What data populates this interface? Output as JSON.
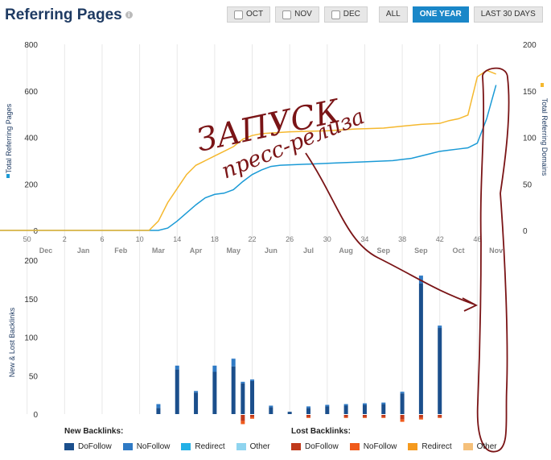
{
  "header": {
    "title": "Referring Pages",
    "buttons": [
      {
        "label": "OCT",
        "checkbox": true,
        "active": false
      },
      {
        "label": "NOV",
        "checkbox": true,
        "active": false
      },
      {
        "label": "DEC",
        "checkbox": true,
        "active": false
      },
      {
        "label": "ALL",
        "checkbox": false,
        "active": false
      },
      {
        "label": "ONE YEAR",
        "checkbox": false,
        "active": true
      },
      {
        "label": "LAST 30 DAYS",
        "checkbox": false,
        "active": false
      }
    ]
  },
  "annotation": {
    "line1": "ЗАПУСК",
    "line2": "пресс-релиза"
  },
  "chart_data": [
    {
      "type": "line",
      "left_axis_label": "Total Referring Pages",
      "right_axis_label": "Total Referring Domains",
      "left_ylim": [
        0,
        800
      ],
      "right_ylim": [
        0,
        200
      ],
      "left_ticks": [
        "0",
        "200",
        "400",
        "600",
        "800"
      ],
      "right_ticks": [
        "0",
        "50",
        "100",
        "150",
        "200"
      ],
      "week_ticks": [
        "50",
        "2",
        "6",
        "10",
        "14",
        "18",
        "22",
        "26",
        "30",
        "34",
        "38",
        "42",
        "46"
      ],
      "month_labels": [
        "Dec",
        "Jan",
        "Feb",
        "Mar",
        "Apr",
        "May",
        "Jun",
        "Jul",
        "Aug",
        "Sep",
        "Sep",
        "Oct",
        "Nov"
      ],
      "colors": {
        "pages": "#1a9ad6",
        "domains": "#f5b82e"
      },
      "series": [
        {
          "name": "Total Referring Pages",
          "axis": "left",
          "points": [
            [
              0,
              0
            ],
            [
              94,
              0
            ],
            [
              95,
              10
            ],
            [
              96,
              40
            ],
            [
              97,
              75
            ],
            [
              98,
              110
            ],
            [
              99,
              140
            ],
            [
              100,
              155
            ],
            [
              101,
              160
            ],
            [
              102,
              175
            ],
            [
              103,
              210
            ],
            [
              104,
              240
            ],
            [
              105,
              260
            ],
            [
              106,
              275
            ],
            [
              107,
              280
            ],
            [
              110,
              285
            ],
            [
              113,
              290
            ],
            [
              116,
              295
            ],
            [
              119,
              300
            ],
            [
              120,
              305
            ],
            [
              121,
              310
            ],
            [
              122,
              320
            ],
            [
              123,
              330
            ],
            [
              124,
              340
            ],
            [
              125,
              345
            ],
            [
              126,
              350
            ],
            [
              127,
              355
            ],
            [
              128,
              375
            ],
            [
              129,
              480
            ],
            [
              130,
              625
            ]
          ]
        },
        {
          "name": "Total Referring Domains",
          "axis": "right",
          "points": [
            [
              0,
              0
            ],
            [
              93,
              0
            ],
            [
              94,
              10
            ],
            [
              95,
              30
            ],
            [
              96,
              45
            ],
            [
              97,
              60
            ],
            [
              98,
              70
            ],
            [
              99,
              75
            ],
            [
              100,
              80
            ],
            [
              101,
              85
            ],
            [
              102,
              90
            ],
            [
              103,
              98
            ],
            [
              104,
              102
            ],
            [
              105,
              104
            ],
            [
              108,
              106
            ],
            [
              112,
              107
            ],
            [
              115,
              109
            ],
            [
              118,
              110
            ],
            [
              120,
              112
            ],
            [
              122,
              114
            ],
            [
              124,
              115
            ],
            [
              125,
              118
            ],
            [
              126,
              120
            ],
            [
              127,
              124
            ],
            [
              128,
              165
            ],
            [
              129,
              172
            ],
            [
              130,
              168
            ]
          ]
        }
      ]
    },
    {
      "type": "bar",
      "ylabel": "New & Lost Backlinks",
      "ylim": [
        -15,
        200
      ],
      "yticks": [
        "0",
        "50",
        "100",
        "150",
        "200"
      ],
      "new_legend_title": "New Backlinks:",
      "lost_legend_title": "Lost Backlinks:",
      "new_legend": [
        {
          "name": "DoFollow",
          "color": "#1b4f8c"
        },
        {
          "name": "NoFollow",
          "color": "#2f7ac5"
        },
        {
          "name": "Redirect",
          "color": "#23b0e6"
        },
        {
          "name": "Other",
          "color": "#8fd4ef"
        }
      ],
      "lost_legend": [
        {
          "name": "DoFollow",
          "color": "#c0391b"
        },
        {
          "name": "NoFollow",
          "color": "#f05a1a"
        },
        {
          "name": "Redirect",
          "color": "#f59a1e"
        },
        {
          "name": "Other",
          "color": "#f5c07a"
        }
      ],
      "bars": [
        {
          "week": 94,
          "dofollow": 8,
          "nofollow": 5,
          "lost_dofollow": 0,
          "lost_nofollow": 0
        },
        {
          "week": 96,
          "dofollow": 58,
          "nofollow": 5,
          "lost_dofollow": 0,
          "lost_nofollow": 0
        },
        {
          "week": 98,
          "dofollow": 28,
          "nofollow": 2,
          "lost_dofollow": 0,
          "lost_nofollow": 0
        },
        {
          "week": 100,
          "dofollow": 55,
          "nofollow": 8,
          "lost_dofollow": 0,
          "lost_nofollow": 0
        },
        {
          "week": 102,
          "dofollow": 62,
          "nofollow": 10,
          "lost_dofollow": 0,
          "lost_nofollow": 0
        },
        {
          "week": 103,
          "dofollow": 40,
          "nofollow": 2,
          "lost_dofollow": 8,
          "lost_nofollow": 4
        },
        {
          "week": 104,
          "dofollow": 43,
          "nofollow": 2,
          "lost_dofollow": 3,
          "lost_nofollow": 2
        },
        {
          "week": 106,
          "dofollow": 9,
          "nofollow": 2,
          "lost_dofollow": 0,
          "lost_nofollow": 0
        },
        {
          "week": 108,
          "dofollow": 3,
          "nofollow": 0,
          "lost_dofollow": 0,
          "lost_nofollow": 0
        },
        {
          "week": 110,
          "dofollow": 8,
          "nofollow": 2,
          "lost_dofollow": 3,
          "lost_nofollow": 1
        },
        {
          "week": 112,
          "dofollow": 10,
          "nofollow": 2,
          "lost_dofollow": 0,
          "lost_nofollow": 0
        },
        {
          "week": 114,
          "dofollow": 11,
          "nofollow": 2,
          "lost_dofollow": 3,
          "lost_nofollow": 1
        },
        {
          "week": 116,
          "dofollow": 12,
          "nofollow": 2,
          "lost_dofollow": 3,
          "lost_nofollow": 1
        },
        {
          "week": 118,
          "dofollow": 13,
          "nofollow": 2,
          "lost_dofollow": 3,
          "lost_nofollow": 1
        },
        {
          "week": 120,
          "dofollow": 27,
          "nofollow": 2,
          "lost_dofollow": 6,
          "lost_nofollow": 3
        },
        {
          "week": 122,
          "dofollow": 170,
          "nofollow": 10,
          "lost_dofollow": 4,
          "lost_nofollow": 2
        },
        {
          "week": 124,
          "dofollow": 112,
          "nofollow": 3,
          "lost_dofollow": 3,
          "lost_nofollow": 1
        }
      ]
    }
  ]
}
